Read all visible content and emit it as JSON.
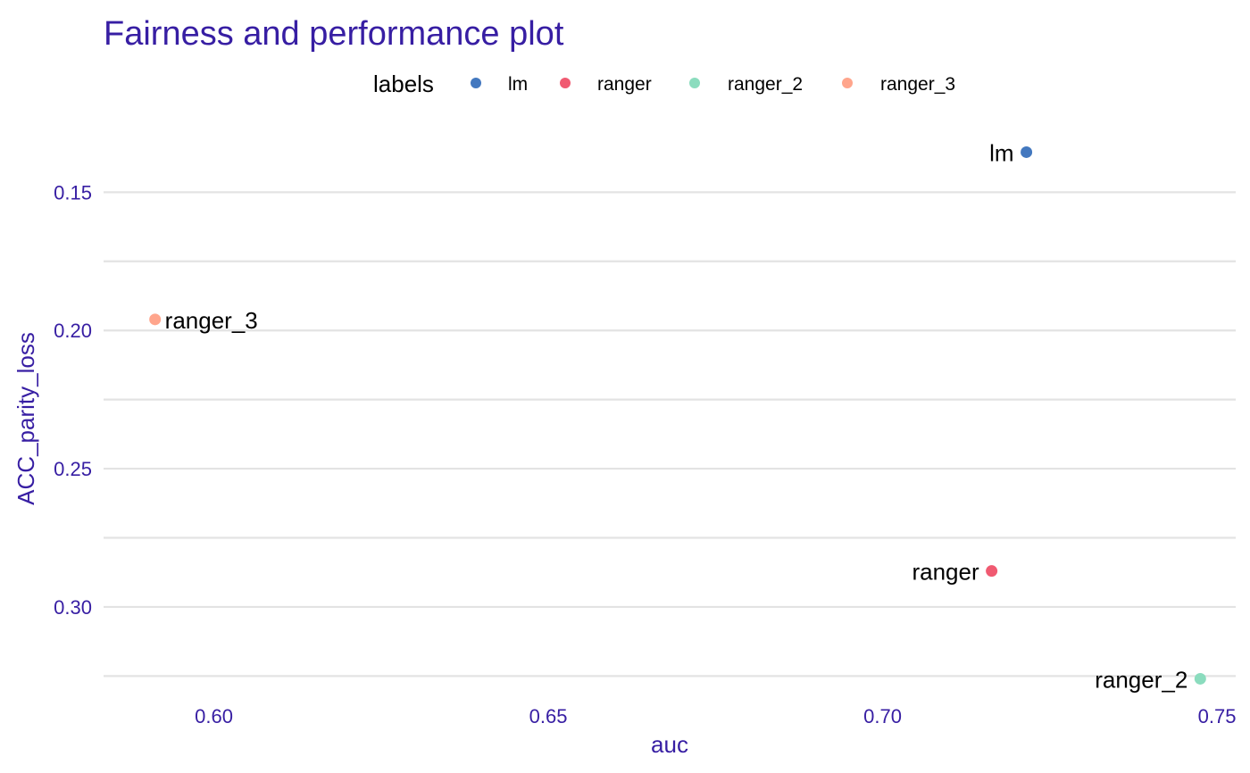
{
  "chart_data": {
    "type": "scatter",
    "title": "Fairness and performance plot",
    "xlabel": "auc",
    "ylabel": "ACC_parity_loss",
    "xlim": [
      0.5835,
      0.7528
    ],
    "ylim": [
      0.136,
      0.3265
    ],
    "y_reversed": true,
    "x_ticks": [
      {
        "value": 0.6,
        "label": "0.60"
      },
      {
        "value": 0.65,
        "label": "0.65"
      },
      {
        "value": 0.7,
        "label": "0.70"
      },
      {
        "value": 0.75,
        "label": "0.75"
      }
    ],
    "y_ticks": [
      {
        "value": 0.15,
        "label": "0.15"
      },
      {
        "value": 0.2,
        "label": "0.20"
      },
      {
        "value": 0.25,
        "label": "0.25"
      },
      {
        "value": 0.3,
        "label": "0.30"
      }
    ],
    "y_minor_gridlines": [
      0.175,
      0.225,
      0.275,
      0.325
    ],
    "grid": true,
    "legend": {
      "title": "labels",
      "position": "top",
      "entries": [
        {
          "label": "lm",
          "color": "#4378BF"
        },
        {
          "label": "ranger",
          "color": "#F05A71"
        },
        {
          "label": "ranger_2",
          "color": "#8BDCBE"
        },
        {
          "label": "ranger_3",
          "color": "#FFA58C"
        }
      ]
    },
    "series": [
      {
        "name": "lm",
        "x": 0.7215,
        "y": 0.1355,
        "color": "#4378BF",
        "label": "lm",
        "label_side": "left"
      },
      {
        "name": "ranger",
        "x": 0.7163,
        "y": 0.287,
        "color": "#F05A71",
        "label": "ranger",
        "label_side": "left"
      },
      {
        "name": "ranger_2",
        "x": 0.7475,
        "y": 0.326,
        "color": "#8BDCBE",
        "label": "ranger_2",
        "label_side": "left"
      },
      {
        "name": "ranger_3",
        "x": 0.5912,
        "y": 0.196,
        "color": "#FFA58C",
        "label": "ranger_3",
        "label_side": "right"
      }
    ],
    "colors": {
      "title": "#371EA3",
      "axis_text": "#371EA3",
      "grid": "#e3e3e3"
    }
  }
}
